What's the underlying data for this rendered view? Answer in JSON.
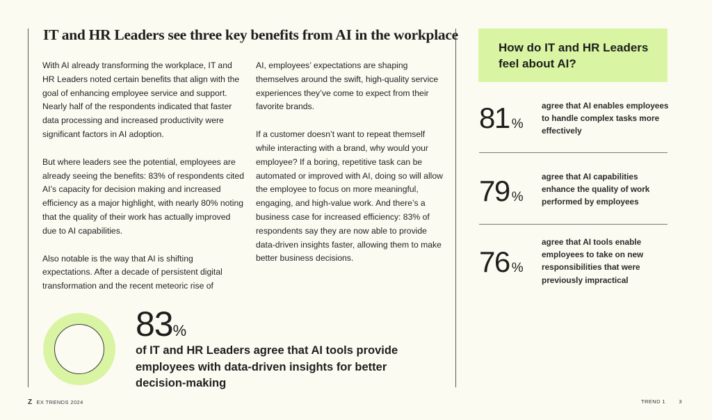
{
  "article": {
    "title": "IT and HR Leaders see three key benefits from AI in the workplace",
    "col1": [
      "With AI already transforming the workplace, IT and HR Leaders noted certain benefits that align with the goal of enhancing employee service and support. Nearly half of the respondents indicated that faster data processing and increased productivity were significant factors in AI adoption.",
      "But where leaders see the potential, employees are already seeing the benefits: 83% of respondents cited AI’s capacity for decision making and increased efficiency as a major highlight, with nearly 80% noting that the quality of their work has actually improved due to AI capabilities.",
      "Also notable is the way that AI is shifting expectations. After a decade of persistent digital transformation and the recent meteoric rise of"
    ],
    "col2": [
      "AI, employees’ expectations are shaping themselves around the swift, high-quality service experiences they’ve come to expect from their favorite brands.",
      "If a customer doesn’t want to repeat themself while interacting with a brand, why would your employee? If a boring, repetitive task can be automated or improved with AI, doing so will allow the employee to focus on more meaningful, engaging, and high-value work. And there’s a business case for increased efficiency: 83% of respondents say they are now able to provide data-driven insights faster, allowing them to make better business decisions."
    ]
  },
  "highlight": {
    "value": "83",
    "unit": "%",
    "percent": 83,
    "text": "of IT and HR Leaders agree that AI tools provide employees with data-driven insights for better decision-making",
    "ring_color": "#d9f5a3"
  },
  "sidebar": {
    "title": "How do IT and HR Leaders feel about AI?",
    "accent_color": "#d9f5a3",
    "stats": [
      {
        "value": "81",
        "unit": "%",
        "text": "agree that AI enables employees to handle complex tasks more effectively"
      },
      {
        "value": "79",
        "unit": "%",
        "text": "agree that AI capabilities enhance the quality of work performed by employees"
      },
      {
        "value": "76",
        "unit": "%",
        "text": "agree that AI tools enable employees to take on new responsibilities that were previously impractical"
      }
    ]
  },
  "footer": {
    "logo": "Z",
    "left_text": "EX TRENDS 2024",
    "section": "TREND 1",
    "page": "3"
  }
}
